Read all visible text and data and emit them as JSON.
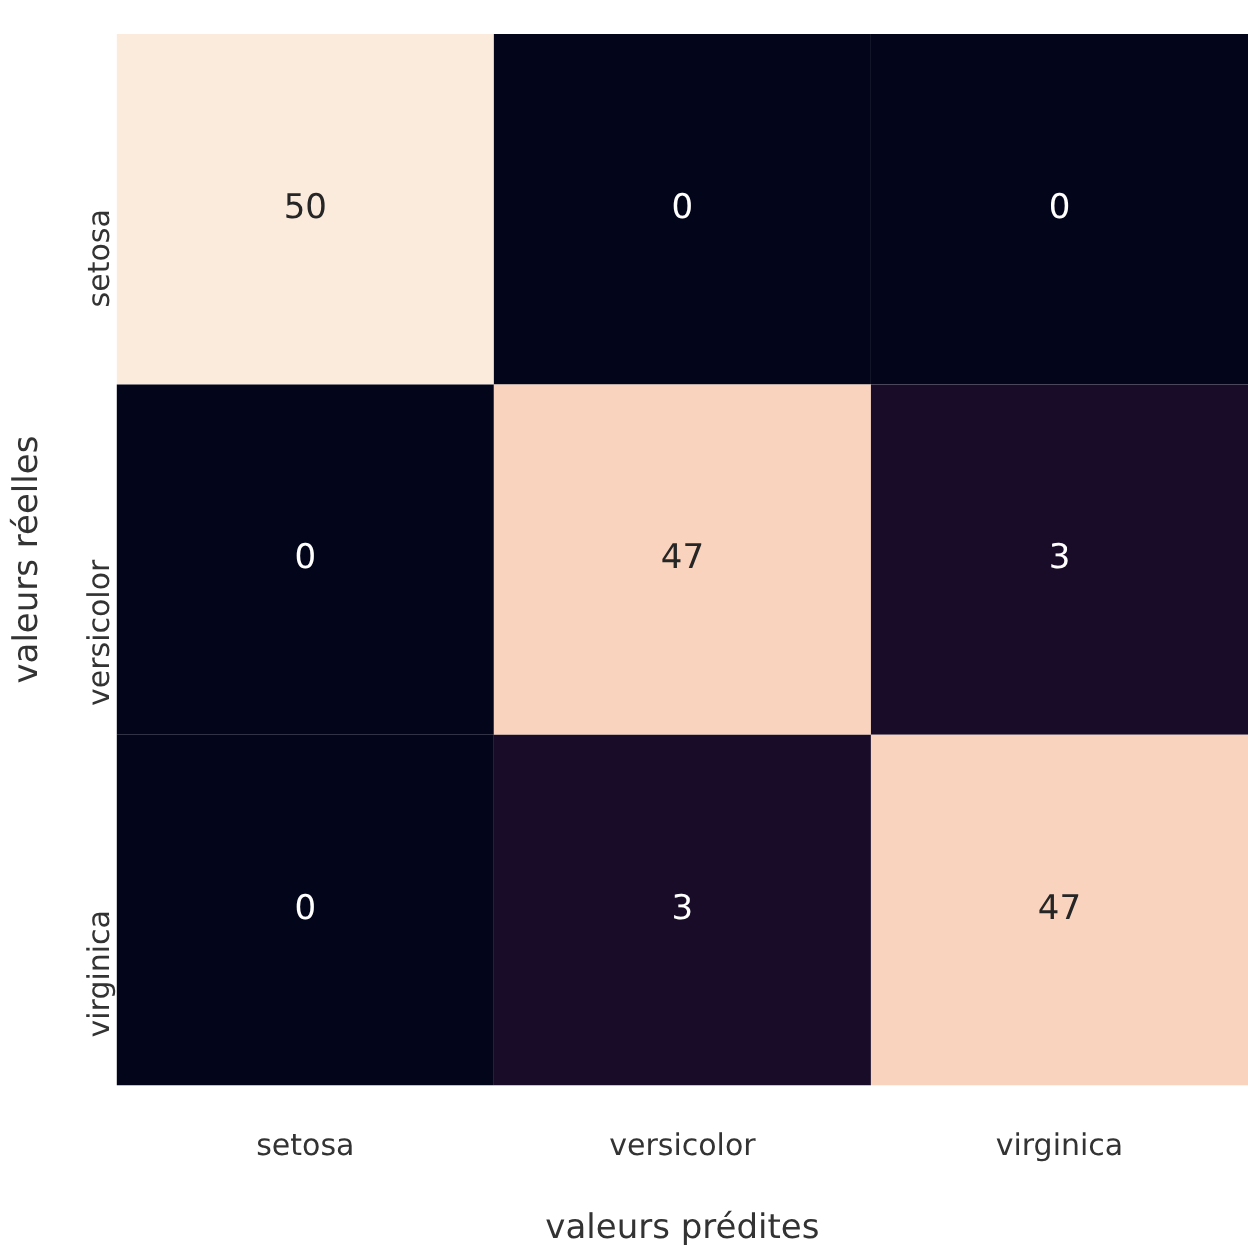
{
  "chart_data": {
    "type": "heatmap",
    "xlabel": "valeurs prédites",
    "ylabel": "valeurs réelles",
    "categories": [
      "setosa",
      "versicolor",
      "virginica"
    ],
    "y_categories": [
      "setosa",
      "versicolor",
      "virginica"
    ],
    "cells": [
      [
        50,
        0,
        0
      ],
      [
        0,
        47,
        3
      ],
      [
        0,
        3,
        47
      ]
    ],
    "data_labels": true,
    "grid": false,
    "legend": false
  }
}
